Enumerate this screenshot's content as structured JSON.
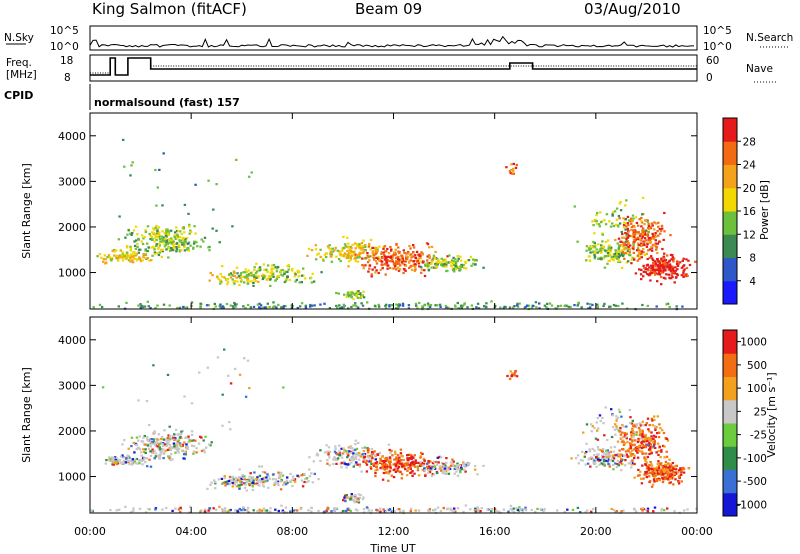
{
  "header": {
    "station": "King Salmon (fitACF)",
    "beam": "Beam 09",
    "date": "03/Aug/2010"
  },
  "summary": {
    "nsky_label": "N.Sky",
    "nsky_ticks": [
      "10^5",
      "10^0"
    ],
    "nsearch_label": "N.Search",
    "freq_label": "Freq.",
    "freq_unit": "[MHz]",
    "freq_ticks": [
      "18",
      "8"
    ],
    "nave_label": "Nave",
    "nave_ticks": [
      "60",
      "0"
    ],
    "cpid_label": "CPID",
    "cpid_value": "normalsound (fast) 157"
  },
  "chart_data": [
    {
      "type": "heatmap",
      "name": "power",
      "ylabel": "Slant Range [km]",
      "y_ticks": [
        "1000",
        "2000",
        "3000",
        "4000"
      ],
      "ylim": [
        200,
        4500
      ],
      "colorbar_label": "Power [dB]",
      "colorbar_ticks": [
        "4",
        "8",
        "12",
        "16",
        "20",
        "24",
        "28"
      ],
      "colors": [
        "#1a1aff",
        "#2e57c8",
        "#3a8a52",
        "#6cc03c",
        "#f2d800",
        "#f3a21a",
        "#f26b12",
        "#e51b1b"
      ]
    },
    {
      "type": "heatmap",
      "name": "velocity",
      "ylabel": "Slant Range [km]",
      "y_ticks": [
        "1000",
        "2000",
        "3000",
        "4000"
      ],
      "ylim": [
        200,
        4500
      ],
      "colorbar_label": "Velocity [m s⁻¹]",
      "colorbar_ticks": [
        "1000",
        "500",
        "100",
        "25",
        "-25",
        "-100",
        "-500",
        "-1000"
      ],
      "colors": [
        "#1616d6",
        "#3a6fd6",
        "#2f8d4a",
        "#6dcc3d",
        "#c8c8c8",
        "#f3a01c",
        "#f36d12",
        "#e61a1a"
      ]
    }
  ],
  "x_axis": {
    "ticks": [
      "00:00",
      "04:00",
      "08:00",
      "12:00",
      "16:00",
      "20:00",
      "00:00"
    ],
    "label": "Time UT"
  }
}
